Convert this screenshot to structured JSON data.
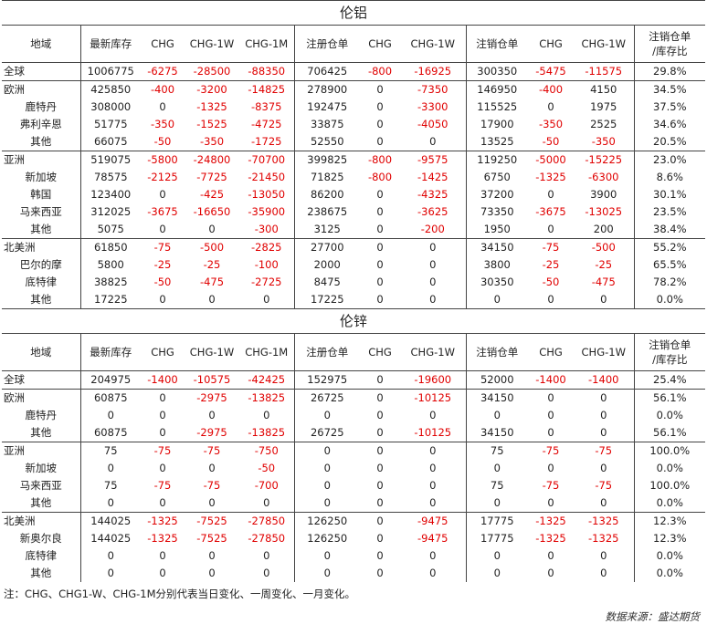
{
  "headers": [
    "地域",
    "最新库存",
    "CHG",
    "CHG-1W",
    "CHG-1M",
    "注册仓单",
    "CHG",
    "CHG-1W",
    "注销仓单",
    "CHG",
    "CHG-1W",
    "注销仓单\n/库存比"
  ],
  "sections": [
    {
      "title": "伦铝",
      "groups": [
        {
          "rows": [
            {
              "name": "全球",
              "sub": false,
              "values": [
                "1006775",
                "-6275",
                "-28500",
                "-88350",
                "706425",
                "-800",
                "-16925",
                "300350",
                "-5475",
                "-11575",
                "29.8%"
              ]
            }
          ]
        },
        {
          "rows": [
            {
              "name": "欧洲",
              "sub": false,
              "values": [
                "425850",
                "-400",
                "-3200",
                "-14825",
                "278900",
                "0",
                "-7350",
                "146950",
                "-400",
                "4150",
                "34.5%"
              ]
            },
            {
              "name": "鹿特丹",
              "sub": true,
              "values": [
                "308000",
                "0",
                "-1325",
                "-8375",
                "192475",
                "0",
                "-3300",
                "115525",
                "0",
                "1975",
                "37.5%"
              ]
            },
            {
              "name": "弗利辛恩",
              "sub": true,
              "values": [
                "51775",
                "-350",
                "-1525",
                "-4725",
                "33875",
                "0",
                "-4050",
                "17900",
                "-350",
                "2525",
                "34.6%"
              ]
            },
            {
              "name": "其他",
              "sub": true,
              "values": [
                "66075",
                "-50",
                "-350",
                "-1725",
                "52550",
                "0",
                "0",
                "13525",
                "-50",
                "-350",
                "20.5%"
              ]
            }
          ]
        },
        {
          "rows": [
            {
              "name": "亚洲",
              "sub": false,
              "values": [
                "519075",
                "-5800",
                "-24800",
                "-70700",
                "399825",
                "-800",
                "-9575",
                "119250",
                "-5000",
                "-15225",
                "23.0%"
              ]
            },
            {
              "name": "新加坡",
              "sub": true,
              "values": [
                "78575",
                "-2125",
                "-7725",
                "-21450",
                "71825",
                "-800",
                "-1425",
                "6750",
                "-1325",
                "-6300",
                "8.6%"
              ]
            },
            {
              "name": "韩国",
              "sub": true,
              "values": [
                "123400",
                "0",
                "-425",
                "-13050",
                "86200",
                "0",
                "-4325",
                "37200",
                "0",
                "3900",
                "30.1%"
              ]
            },
            {
              "name": "马来西亚",
              "sub": true,
              "values": [
                "312025",
                "-3675",
                "-16650",
                "-35900",
                "238675",
                "0",
                "-3625",
                "73350",
                "-3675",
                "-13025",
                "23.5%"
              ]
            },
            {
              "name": "其他",
              "sub": true,
              "values": [
                "5075",
                "0",
                "0",
                "-300",
                "3125",
                "0",
                "-200",
                "1950",
                "0",
                "200",
                "38.4%"
              ]
            }
          ]
        },
        {
          "rows": [
            {
              "name": "北美洲",
              "sub": false,
              "values": [
                "61850",
                "-75",
                "-500",
                "-2825",
                "27700",
                "0",
                "0",
                "34150",
                "-75",
                "-500",
                "55.2%"
              ]
            },
            {
              "name": "巴尔的摩",
              "sub": true,
              "values": [
                "5800",
                "-25",
                "-25",
                "-100",
                "2000",
                "0",
                "0",
                "3800",
                "-25",
                "-25",
                "65.5%"
              ]
            },
            {
              "name": "底特律",
              "sub": true,
              "values": [
                "38825",
                "-50",
                "-475",
                "-2725",
                "8475",
                "0",
                "0",
                "30350",
                "-50",
                "-475",
                "78.2%"
              ]
            },
            {
              "name": "其他",
              "sub": true,
              "values": [
                "17225",
                "0",
                "0",
                "0",
                "17225",
                "0",
                "0",
                "0",
                "0",
                "0",
                "0.0%"
              ]
            }
          ]
        }
      ]
    },
    {
      "title": "伦锌",
      "groups": [
        {
          "rows": [
            {
              "name": "全球",
              "sub": false,
              "values": [
                "204975",
                "-1400",
                "-10575",
                "-42425",
                "152975",
                "0",
                "-19600",
                "52000",
                "-1400",
                "-1400",
                "25.4%"
              ]
            }
          ]
        },
        {
          "rows": [
            {
              "name": "欧洲",
              "sub": false,
              "values": [
                "60875",
                "0",
                "-2975",
                "-13825",
                "26725",
                "0",
                "-10125",
                "34150",
                "0",
                "0",
                "56.1%"
              ]
            },
            {
              "name": "鹿特丹",
              "sub": true,
              "values": [
                "0",
                "0",
                "0",
                "0",
                "0",
                "0",
                "0",
                "0",
                "0",
                "0",
                "0.0%"
              ]
            },
            {
              "name": "其他",
              "sub": true,
              "values": [
                "60875",
                "0",
                "-2975",
                "-13825",
                "26725",
                "0",
                "-10125",
                "34150",
                "0",
                "0",
                "56.1%"
              ]
            }
          ]
        },
        {
          "rows": [
            {
              "name": "亚洲",
              "sub": false,
              "values": [
                "75",
                "-75",
                "-75",
                "-750",
                "0",
                "0",
                "0",
                "75",
                "-75",
                "-75",
                "100.0%"
              ]
            },
            {
              "name": "新加坡",
              "sub": true,
              "values": [
                "0",
                "0",
                "0",
                "-50",
                "0",
                "0",
                "0",
                "0",
                "0",
                "0",
                "0.0%"
              ]
            },
            {
              "name": "马来西亚",
              "sub": true,
              "values": [
                "75",
                "-75",
                "-75",
                "-700",
                "0",
                "0",
                "0",
                "75",
                "-75",
                "-75",
                "100.0%"
              ]
            },
            {
              "name": "其他",
              "sub": true,
              "values": [
                "0",
                "0",
                "0",
                "0",
                "0",
                "0",
                "0",
                "0",
                "0",
                "0",
                "0.0%"
              ]
            }
          ]
        },
        {
          "rows": [
            {
              "name": "北美洲",
              "sub": false,
              "values": [
                "144025",
                "-1325",
                "-7525",
                "-27850",
                "126250",
                "0",
                "-9475",
                "17775",
                "-1325",
                "-1325",
                "12.3%"
              ]
            },
            {
              "name": "新奥尔良",
              "sub": true,
              "values": [
                "144025",
                "-1325",
                "-7525",
                "-27850",
                "126250",
                "0",
                "-9475",
                "17775",
                "-1325",
                "-1325",
                "12.3%"
              ]
            },
            {
              "name": "底特律",
              "sub": true,
              "values": [
                "0",
                "0",
                "0",
                "0",
                "0",
                "0",
                "0",
                "0",
                "0",
                "0",
                "0.0%"
              ]
            },
            {
              "name": "其他",
              "sub": true,
              "values": [
                "0",
                "0",
                "0",
                "0",
                "0",
                "0",
                "0",
                "0",
                "0",
                "0",
                "0.0%"
              ]
            }
          ]
        }
      ]
    }
  ],
  "note": "注：CHG、CHG1-W、CHG-1M分别代表当日变化、一周变化、一月变化。",
  "source": "数据来源：盛达期货",
  "colors": {
    "negative": "#e00000",
    "text": "#222222",
    "rule": "#444444"
  }
}
